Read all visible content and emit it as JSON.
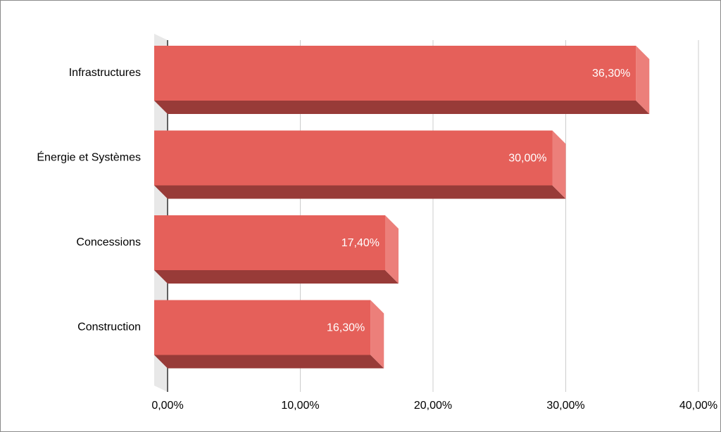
{
  "chart_data": {
    "type": "bar",
    "orientation": "horizontal",
    "style": "3d",
    "categories": [
      "Infrastructures",
      "Énergie et Systèmes",
      "Concessions",
      "Construction"
    ],
    "values": [
      36.3,
      30.0,
      17.4,
      16.3
    ],
    "value_labels": [
      "36,30%",
      "30,00%",
      "17,40%",
      "16,30%"
    ],
    "xlim": [
      0,
      40
    ],
    "x_ticks": [
      0,
      10,
      20,
      30,
      40
    ],
    "x_tick_labels": [
      "0,00%",
      "10,00%",
      "20,00%",
      "30,00%",
      "40,00%"
    ],
    "grid": true,
    "legend": "none",
    "title": "",
    "xlabel": "",
    "ylabel": ""
  },
  "colors": {
    "bar_front": "#e5605a",
    "bar_side": "#ec7f7a",
    "bar_bottom": "#983b38",
    "gridline": "#cccccc",
    "axis": "#000000",
    "wall": "#e8e8e8",
    "label_inside": "#ffffff"
  }
}
